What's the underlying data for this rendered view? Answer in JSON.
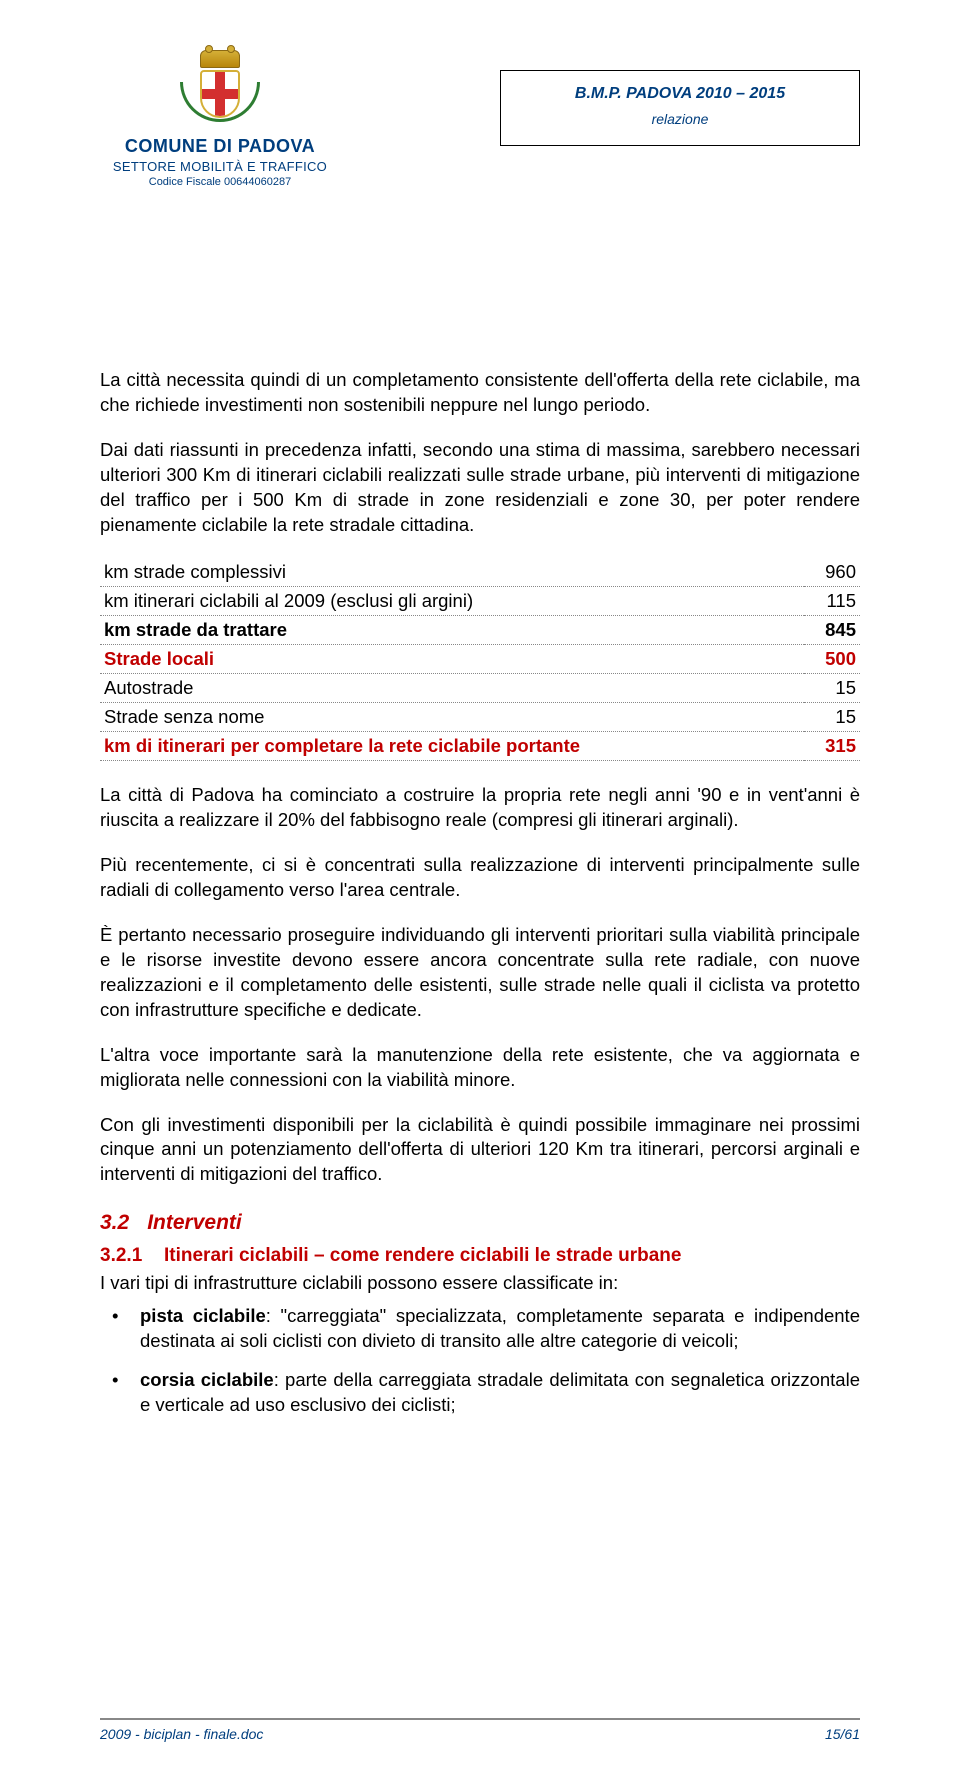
{
  "header": {
    "org_name": "COMUNE DI PADOVA",
    "dept_name": "SETTORE MOBILITÀ E TRAFFICO",
    "fiscal_code": "Codice Fiscale 00644060287",
    "doc_title": "B.M.P. PADOVA 2010 – 2015",
    "doc_subtitle": "relazione"
  },
  "paragraphs": {
    "p1": "La città necessita quindi di un completamento consistente dell'offerta della rete ciclabile, ma che richiede investimenti non sostenibili neppure nel lungo periodo.",
    "p2": "Dai dati riassunti in precedenza infatti, secondo una stima di massima, sarebbero necessari ulteriori 300 Km di itinerari ciclabili realizzati sulle strade urbane, più interventi di mitigazione del traffico per i 500 Km di strade in zone residenziali e zone 30, per poter rendere pienamente ciclabile la rete stradale cittadina.",
    "p3": "La città di Padova ha cominciato a costruire la propria rete negli anni '90 e in vent'anni è riuscita a realizzare il 20% del fabbisogno reale (compresi gli itinerari arginali).",
    "p4": "Più recentemente, ci si è concentrati sulla realizzazione di interventi principalmente sulle radiali di collegamento verso l'area centrale.",
    "p5": "È pertanto necessario proseguire individuando gli interventi prioritari sulla viabilità principale e le risorse investite devono essere ancora concentrate sulla rete radiale, con nuove realizzazioni e il completamento delle esistenti, sulle strade nelle quali il ciclista va protetto con infrastrutture specifiche e dedicate.",
    "p6": "L'altra voce importante sarà la manutenzione della rete esistente, che va aggiornata e migliorata nelle connessioni con la viabilità minore.",
    "p7": "Con gli investimenti disponibili per la ciclabilità è quindi possibile immaginare nei prossimi cinque anni un potenziamento dell'offerta di ulteriori 120 Km tra itinerari, percorsi arginali e interventi di mitigazioni del traffico."
  },
  "table": {
    "rows": [
      {
        "label": "km strade complessivi",
        "value": "960",
        "style": "normal"
      },
      {
        "label": "km itinerari ciclabili al 2009 (esclusi gli argini)",
        "value": "115",
        "style": "normal"
      },
      {
        "label": "km strade da trattare",
        "value": "845",
        "style": "bold"
      },
      {
        "label": "Strade locali",
        "value": "500",
        "style": "red"
      },
      {
        "label": "Autostrade",
        "value": "15",
        "style": "normal"
      },
      {
        "label": "Strade senza nome",
        "value": "15",
        "style": "normal"
      },
      {
        "label": "km di itinerari per completare la rete ciclabile portante",
        "value": "315",
        "style": "red"
      }
    ]
  },
  "section": {
    "num": "3.2",
    "title": "Interventi"
  },
  "subsection": {
    "num": "3.2.1",
    "title": "Itinerari ciclabili – come rendere ciclabili le strade urbane",
    "intro": "I vari tipi di infrastrutture ciclabili possono essere classificate in:"
  },
  "bullets": [
    {
      "term": "pista ciclabile",
      "text": ": \"carreggiata\" specializzata, completamente separata e indipendente destinata ai soli ciclisti con divieto di transito alle altre categorie di veicoli;"
    },
    {
      "term": "corsia ciclabile",
      "text": ": parte della carreggiata stradale delimitata con segnaletica orizzontale e verticale ad uso esclusivo dei ciclisti;"
    }
  ],
  "footer": {
    "doc_ref": "2009 - biciplan - finale.doc",
    "page_current": "15",
    "page_total": "61"
  }
}
